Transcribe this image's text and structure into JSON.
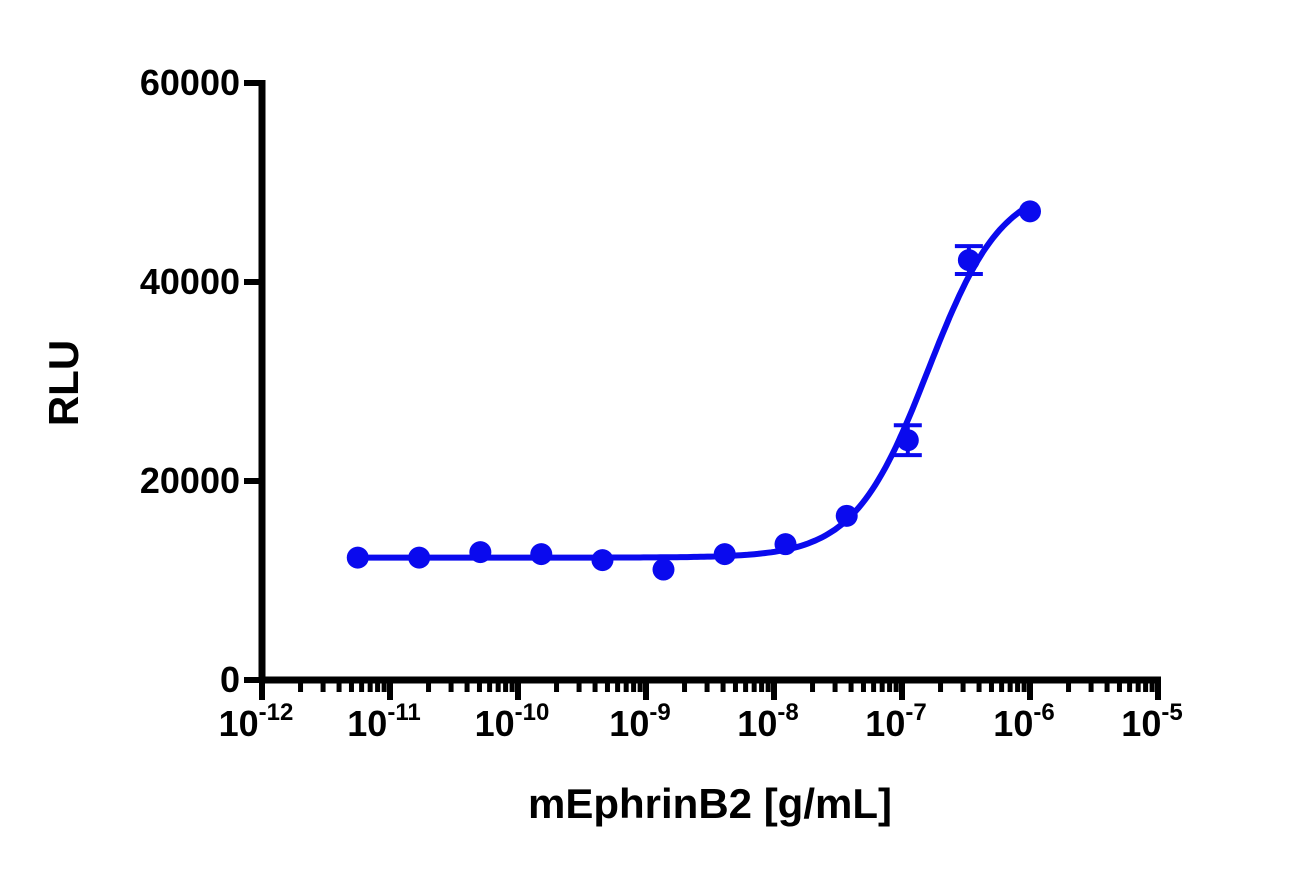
{
  "chart_data": {
    "type": "scatter",
    "xlabel": "mEphrinB2 [g/mL]",
    "ylabel": "RLU",
    "x_scale": "log",
    "xlim": [
      1e-12,
      1e-05
    ],
    "ylim": [
      0,
      60000
    ],
    "x_ticks": [
      {
        "base": "10",
        "exp": "-12",
        "value": 1e-12
      },
      {
        "base": "10",
        "exp": "-11",
        "value": 1e-11
      },
      {
        "base": "10",
        "exp": "-10",
        "value": 1e-10
      },
      {
        "base": "10",
        "exp": "-9",
        "value": 1e-09
      },
      {
        "base": "10",
        "exp": "-8",
        "value": 1e-08
      },
      {
        "base": "10",
        "exp": "-7",
        "value": 1e-07
      },
      {
        "base": "10",
        "exp": "-6",
        "value": 1e-06
      },
      {
        "base": "10",
        "exp": "-5",
        "value": 1e-05
      }
    ],
    "y_ticks": [
      "0",
      "20000",
      "40000",
      "60000"
    ],
    "grid": false,
    "color": "#0a0aee",
    "series": [
      {
        "x": [
          5.6e-12,
          1.69e-11,
          5.08e-11,
          1.52e-10,
          4.57e-10,
          1.37e-09,
          4.12e-09,
          1.23e-08,
          3.7e-08,
          1.11e-07,
          3.33e-07,
          1e-06
        ],
        "y": [
          12300,
          12300,
          12850,
          12650,
          12050,
          11100,
          12650,
          13650,
          16500,
          24100,
          42200,
          47100
        ],
        "yerr": [
          0,
          0,
          0,
          0,
          0,
          0,
          0,
          0,
          0,
          1500,
          1400,
          0
        ]
      }
    ],
    "fit": {
      "model": "4PL",
      "bottom": 12300,
      "top": 50000,
      "ec50": 1.6e-07,
      "hill": 1.5
    }
  }
}
